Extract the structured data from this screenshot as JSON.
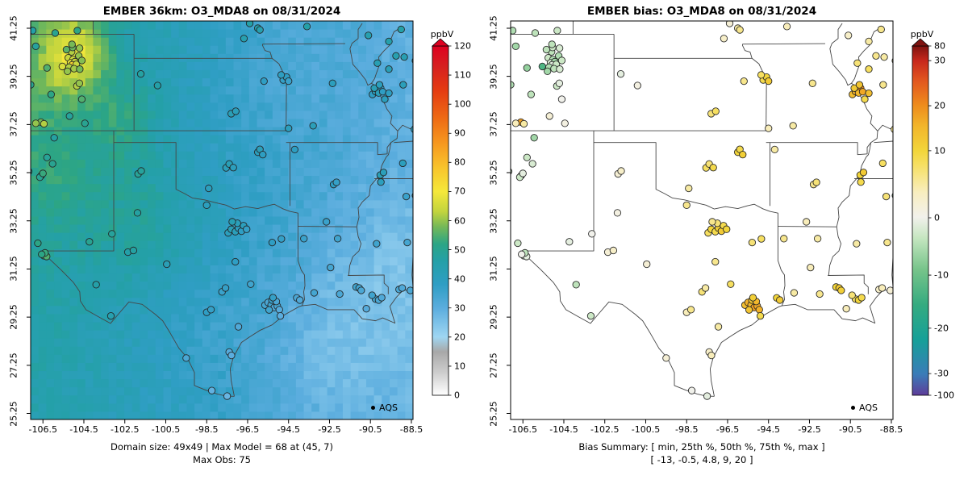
{
  "chart_data": [
    {
      "type": "heatmap",
      "title": "EMBER 36km: O3_MDA8 on 08/31/2024",
      "xlabel": "",
      "ylabel": "",
      "xlim": [
        -107.1,
        -88.42
      ],
      "ylim": [
        25.0,
        41.55
      ],
      "xticks": [
        -106.5,
        -104.5,
        -102.5,
        -100.5,
        -98.5,
        -96.5,
        -94.5,
        -92.5,
        -90.5,
        -88.5
      ],
      "yticks": [
        25.25,
        27.25,
        29.25,
        31.25,
        33.25,
        35.25,
        37.25,
        39.25,
        41.25
      ],
      "legend_label": "AQS",
      "caption_line1": "Domain size: 49x49 | Max Model = 68 at (45, 7)",
      "caption_line2": "Max Obs: 75",
      "point_value_key": "obs",
      "grid": {
        "nx": 49,
        "ny": 49
      },
      "colorbar": {
        "label": "ppbV",
        "min": 0,
        "max": 120,
        "ticks": [
          0,
          10,
          20,
          30,
          40,
          50,
          60,
          70,
          80,
          90,
          100,
          110,
          120
        ],
        "stops": [
          [
            0,
            "#ffffff"
          ],
          [
            8,
            "#cccccc"
          ],
          [
            15,
            "#a8a8a8"
          ],
          [
            20,
            "#9fd6f2"
          ],
          [
            30,
            "#5badde"
          ],
          [
            38,
            "#2f9ec4"
          ],
          [
            46,
            "#24a0a8"
          ],
          [
            52,
            "#2ca585"
          ],
          [
            58,
            "#76b957"
          ],
          [
            63,
            "#c2d43e"
          ],
          [
            70,
            "#f5e83a"
          ],
          [
            78,
            "#f8c52c"
          ],
          [
            86,
            "#f79b20"
          ],
          [
            95,
            "#ee6b14"
          ],
          [
            105,
            "#e43a12"
          ],
          [
            113,
            "#d62020"
          ],
          [
            120,
            "#de0020"
          ]
        ]
      },
      "field_model": {
        "base_east": 29,
        "west_gain": 16,
        "northwest_gain": 5,
        "noise_amp": 2.2,
        "blobs": [
          [
            -104.9,
            40.25,
            1.15,
            19
          ],
          [
            -102.6,
            37.4,
            1.2,
            7
          ],
          [
            -106.2,
            39.0,
            1.6,
            5
          ],
          [
            -101.6,
            33.2,
            2.0,
            6
          ],
          [
            -105.9,
            35.2,
            1.5,
            5
          ],
          [
            -92.6,
            27.9,
            2.6,
            -6
          ],
          [
            -89.6,
            31.3,
            2.2,
            -4
          ],
          [
            -95.5,
            39.8,
            2.2,
            -3
          ],
          [
            -99.6,
            29.2,
            2.0,
            -2
          ]
        ]
      }
    },
    {
      "type": "scatter",
      "title": "EMBER bias: O3_MDA8 on 08/31/2024",
      "xlabel": "",
      "ylabel": "",
      "xlim": [
        -107.1,
        -88.42
      ],
      "ylim": [
        25.0,
        41.55
      ],
      "xticks": [
        -106.5,
        -104.5,
        -102.5,
        -100.5,
        -98.5,
        -96.5,
        -94.5,
        -92.5,
        -90.5,
        -88.5
      ],
      "yticks": [
        25.25,
        27.25,
        29.25,
        31.25,
        33.25,
        35.25,
        37.25,
        39.25,
        41.25
      ],
      "legend_label": "AQS",
      "caption_line1": "Bias Summary: [ min, 25th %, 50th %, 75th %, max ]",
      "caption_line2": "[ -13,  -0.5,  4.8,  9,  20 ]",
      "point_value_key": "bias",
      "colorbar": {
        "label": "ppbV",
        "ticks": [
          80,
          30,
          20,
          10,
          0,
          -10,
          -20,
          -30,
          -100
        ],
        "value_anchors": [
          [
            -100,
            0.0
          ],
          [
            -30,
            0.062
          ],
          [
            -20,
            0.192
          ],
          [
            -10,
            0.344
          ],
          [
            0,
            0.508
          ],
          [
            10,
            0.7
          ],
          [
            20,
            0.829
          ],
          [
            30,
            0.958
          ],
          [
            80,
            1.0
          ]
        ],
        "stops": [
          [
            0.0,
            "#5e3c99"
          ],
          [
            0.06,
            "#3a7cb8"
          ],
          [
            0.16,
            "#16a098"
          ],
          [
            0.26,
            "#35ab80"
          ],
          [
            0.36,
            "#77c48a"
          ],
          [
            0.45,
            "#c5e6c0"
          ],
          [
            0.51,
            "#f2f1ec"
          ],
          [
            0.58,
            "#f8eec0"
          ],
          [
            0.66,
            "#f6df62"
          ],
          [
            0.7,
            "#f2d53a"
          ],
          [
            0.77,
            "#f2b62b"
          ],
          [
            0.83,
            "#ee8c1c"
          ],
          [
            0.9,
            "#e2571f"
          ],
          [
            0.958,
            "#c7281c"
          ],
          [
            1.0,
            "#7f1310"
          ]
        ]
      }
    }
  ],
  "stations": {
    "columns": [
      "lon",
      "lat",
      "obs",
      "bias"
    ],
    "rows": [
      [
        -105.1,
        40.27,
        62,
        -4
      ],
      [
        -105.26,
        40.02,
        64,
        -3
      ],
      [
        -105.03,
        39.95,
        65,
        -5
      ],
      [
        -105.15,
        39.81,
        68,
        -2
      ],
      [
        -104.94,
        39.86,
        63,
        -6
      ],
      [
        -105.07,
        39.73,
        75,
        -1
      ],
      [
        -104.87,
        39.75,
        64,
        -3
      ],
      [
        -105.22,
        39.63,
        62,
        -5
      ],
      [
        -104.98,
        39.57,
        61,
        -4
      ],
      [
        -105.3,
        39.46,
        60,
        -6
      ],
      [
        -104.7,
        39.55,
        58,
        -2
      ],
      [
        -105.05,
        40.45,
        57,
        -3
      ],
      [
        -104.75,
        40.1,
        60,
        -5
      ],
      [
        -105.35,
        40.36,
        56,
        -4
      ],
      [
        -104.6,
        39.91,
        59,
        -3
      ],
      [
        -105.55,
        39.66,
        66,
        -13
      ],
      [
        -105.08,
        40.58,
        58,
        -4
      ],
      [
        -104.71,
        40.42,
        60,
        -2
      ],
      [
        -104.84,
        38.85,
        62,
        -3
      ],
      [
        -104.72,
        38.96,
        60,
        -1
      ],
      [
        -104.6,
        38.3,
        55,
        0
      ],
      [
        -107.0,
        41.15,
        46,
        -5
      ],
      [
        -105.9,
        41.05,
        50,
        -4
      ],
      [
        -104.82,
        41.15,
        52,
        -3
      ],
      [
        -106.85,
        40.5,
        48,
        -6
      ],
      [
        -106.3,
        39.6,
        55,
        -7
      ],
      [
        -107.1,
        38.9,
        50,
        -5
      ],
      [
        -106.1,
        38.5,
        52,
        -4
      ],
      [
        -106.6,
        37.35,
        58,
        18
      ],
      [
        -106.85,
        37.3,
        60,
        4
      ],
      [
        -106.45,
        37.28,
        62,
        5
      ],
      [
        -105.2,
        37.6,
        48,
        2
      ],
      [
        -104.45,
        37.3,
        50,
        1
      ],
      [
        -106.58,
        35.13,
        52,
        -2
      ],
      [
        -106.65,
        35.06,
        50,
        -3
      ],
      [
        -106.5,
        35.22,
        53,
        -1
      ],
      [
        -106.03,
        35.62,
        50,
        -2
      ],
      [
        -106.3,
        35.88,
        49,
        -3
      ],
      [
        -107.2,
        35.3,
        48,
        -4
      ],
      [
        -106.75,
        32.32,
        52,
        -3
      ],
      [
        -104.23,
        32.38,
        50,
        -1
      ],
      [
        -103.13,
        32.71,
        48,
        0
      ],
      [
        -105.95,
        36.7,
        47,
        -6
      ],
      [
        -106.45,
        31.8,
        54,
        -2
      ],
      [
        -106.32,
        31.77,
        55,
        -1
      ],
      [
        -106.4,
        31.92,
        53,
        -4
      ],
      [
        -106.56,
        31.86,
        52,
        0
      ],
      [
        -101.85,
        35.2,
        49,
        2
      ],
      [
        -101.7,
        35.32,
        48,
        3
      ],
      [
        -101.88,
        33.58,
        47,
        1
      ],
      [
        -102.35,
        31.95,
        46,
        2
      ],
      [
        -102.08,
        32.02,
        47,
        3
      ],
      [
        -103.18,
        29.3,
        44,
        -3
      ],
      [
        -103.9,
        30.6,
        46,
        -4
      ],
      [
        -97.45,
        32.75,
        40,
        8
      ],
      [
        -97.3,
        32.9,
        42,
        10
      ],
      [
        -97.1,
        32.8,
        41,
        9
      ],
      [
        -96.95,
        32.95,
        39,
        11
      ],
      [
        -96.8,
        32.82,
        38,
        12
      ],
      [
        -96.7,
        33.05,
        40,
        9
      ],
      [
        -97.0,
        33.15,
        41,
        7
      ],
      [
        -96.55,
        32.9,
        37,
        10
      ],
      [
        -97.25,
        33.21,
        43,
        6
      ],
      [
        -95.3,
        32.35,
        38,
        7
      ],
      [
        -94.85,
        32.5,
        37,
        8
      ],
      [
        -97.1,
        31.55,
        38,
        6
      ],
      [
        -97.75,
        30.3,
        36,
        7
      ],
      [
        -97.58,
        30.46,
        37,
        5
      ],
      [
        -98.5,
        29.45,
        38,
        4
      ],
      [
        -98.29,
        29.56,
        37,
        6
      ],
      [
        -98.5,
        33.9,
        40,
        6
      ],
      [
        -95.65,
        29.75,
        34,
        14
      ],
      [
        -95.5,
        29.86,
        33,
        16
      ],
      [
        -95.35,
        29.76,
        35,
        15
      ],
      [
        -95.2,
        29.65,
        32,
        18
      ],
      [
        -95.05,
        29.71,
        34,
        17
      ],
      [
        -95.31,
        29.96,
        36,
        12
      ],
      [
        -95.1,
        29.9,
        33,
        15
      ],
      [
        -94.95,
        29.56,
        31,
        16
      ],
      [
        -95.45,
        29.55,
        35,
        13
      ],
      [
        -95.26,
        30.06,
        37,
        11
      ],
      [
        -94.1,
        30.05,
        33,
        10
      ],
      [
        -93.95,
        29.96,
        32,
        12
      ],
      [
        -94.9,
        29.3,
        30,
        9
      ],
      [
        -97.4,
        27.8,
        31,
        3
      ],
      [
        -97.29,
        27.66,
        30,
        4
      ],
      [
        -99.5,
        27.55,
        33,
        2
      ],
      [
        -97.5,
        25.97,
        28,
        -1
      ],
      [
        -98.25,
        26.2,
        29,
        0
      ],
      [
        -96.95,
        28.85,
        32,
        5
      ],
      [
        -96.35,
        30.62,
        35,
        8
      ],
      [
        -100.45,
        31.45,
        42,
        2
      ],
      [
        -97.55,
        35.45,
        41,
        8
      ],
      [
        -97.4,
        35.61,
        42,
        7
      ],
      [
        -97.2,
        35.46,
        40,
        9
      ],
      [
        -96.0,
        36.1,
        40,
        10
      ],
      [
        -95.9,
        36.22,
        41,
        9
      ],
      [
        -95.76,
        36.0,
        39,
        11
      ],
      [
        -98.4,
        34.6,
        40,
        5
      ],
      [
        -97.3,
        37.7,
        42,
        7
      ],
      [
        -97.08,
        37.8,
        41,
        8
      ],
      [
        -95.7,
        39.05,
        38,
        6
      ],
      [
        -94.76,
        39.1,
        37,
        9
      ],
      [
        -94.6,
        39.22,
        38,
        10
      ],
      [
        -94.5,
        39.05,
        36,
        12
      ],
      [
        -94.86,
        39.31,
        39,
        8
      ],
      [
        -100.9,
        38.87,
        46,
        1
      ],
      [
        -101.72,
        39.35,
        47,
        -1
      ],
      [
        -96.68,
        40.82,
        44,
        3
      ],
      [
        -96.0,
        41.25,
        45,
        5
      ],
      [
        -95.9,
        41.18,
        44,
        6
      ],
      [
        -93.6,
        41.32,
        46,
        4
      ],
      [
        -96.4,
        41.45,
        46,
        2
      ],
      [
        -90.4,
        38.5,
        38,
        14
      ],
      [
        -90.25,
        38.62,
        40,
        16
      ],
      [
        -90.15,
        38.71,
        39,
        18
      ],
      [
        -90.0,
        38.76,
        37,
        20
      ],
      [
        -90.1,
        38.56,
        41,
        15
      ],
      [
        -89.9,
        38.61,
        38,
        17
      ],
      [
        -90.31,
        38.76,
        42,
        12
      ],
      [
        -90.06,
        38.9,
        40,
        13
      ],
      [
        -92.35,
        38.96,
        40,
        6
      ],
      [
        -93.3,
        37.2,
        41,
        5
      ],
      [
        -94.5,
        37.09,
        40,
        4
      ],
      [
        -89.6,
        39.55,
        42,
        8
      ],
      [
        -90.16,
        39.8,
        43,
        7
      ],
      [
        -89.25,
        40.1,
        44,
        6
      ],
      [
        -88.85,
        40.05,
        43,
        5
      ],
      [
        -88.3,
        39.9,
        42,
        7
      ],
      [
        -88.2,
        40.6,
        44,
        4
      ],
      [
        -89.6,
        40.7,
        45,
        5
      ],
      [
        -90.6,
        40.95,
        44,
        3
      ],
      [
        -89.0,
        41.2,
        46,
        6
      ],
      [
        -88.1,
        41.28,
        45,
        8
      ],
      [
        -88.9,
        38.9,
        41,
        6
      ],
      [
        -89.6,
        38.55,
        39,
        14
      ],
      [
        -89.8,
        38.3,
        40,
        9
      ],
      [
        -87.95,
        37.35,
        41,
        7
      ],
      [
        -88.35,
        37.05,
        40,
        6
      ],
      [
        -90.02,
        35.15,
        42,
        10
      ],
      [
        -89.86,
        35.26,
        41,
        12
      ],
      [
        -88.92,
        35.64,
        40,
        8
      ],
      [
        -88.25,
        35.96,
        39,
        -10
      ],
      [
        -92.3,
        34.76,
        38,
        6
      ],
      [
        -92.16,
        34.85,
        37,
        7
      ],
      [
        -94.2,
        36.21,
        39,
        5
      ],
      [
        -92.65,
        33.21,
        36,
        4
      ],
      [
        -93.75,
        32.51,
        36,
        6
      ],
      [
        -92.1,
        32.51,
        35,
        5
      ],
      [
        -92.45,
        31.31,
        34,
        4
      ],
      [
        -91.2,
        30.5,
        35,
        10
      ],
      [
        -91.05,
        30.46,
        34,
        12
      ],
      [
        -90.95,
        30.36,
        33,
        11
      ],
      [
        -90.25,
        30.0,
        34,
        8
      ],
      [
        -90.1,
        29.96,
        33,
        10
      ],
      [
        -89.95,
        30.06,
        32,
        9
      ],
      [
        -90.42,
        30.16,
        35,
        7
      ],
      [
        -93.25,
        30.26,
        34,
        5
      ],
      [
        -92.0,
        30.21,
        33,
        6
      ],
      [
        -90.7,
        29.6,
        31,
        4
      ],
      [
        -90.2,
        32.3,
        35,
        5
      ],
      [
        -89.1,
        30.4,
        33,
        3
      ],
      [
        -88.95,
        30.46,
        32,
        4
      ],
      [
        -88.55,
        30.36,
        33,
        2
      ],
      [
        -88.7,
        32.35,
        34,
        6
      ],
      [
        -88.75,
        34.26,
        36,
        7
      ],
      [
        -89.99,
        34.86,
        40,
        9
      ],
      [
        -88.3,
        34.3,
        42,
        -10
      ],
      [
        -88.1,
        30.7,
        34,
        3
      ]
    ]
  }
}
